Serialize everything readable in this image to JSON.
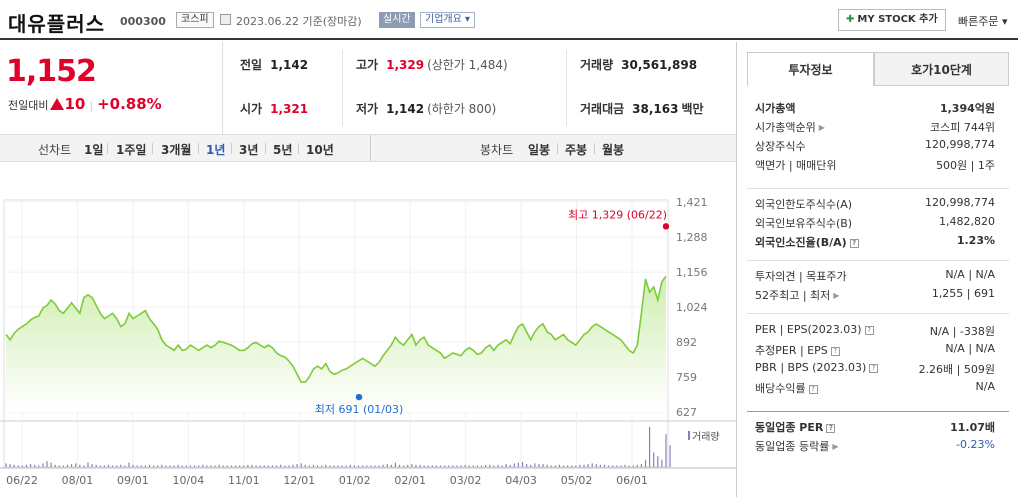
{
  "header": {
    "stock_name": "대유플러스",
    "stock_code": "000300",
    "market": "코스피",
    "date_basis": "2023.06.22 기준(장마감)",
    "realtime_label": "실시간",
    "company_overview_label": "기업개요 ▾",
    "my_stock_label": "MY STOCK 추가",
    "quick_order_label": "빠른주문 ▾"
  },
  "price": {
    "current": "1,152",
    "change_label": "전일대비",
    "change_value": "10",
    "change_pct": "+0.88%"
  },
  "stats": {
    "prev_close_label": "전일",
    "prev_close": "1,142",
    "open_label": "시가",
    "open": "1,321",
    "high_label": "고가",
    "high": "1,329",
    "upper_limit": "(상한가 1,484)",
    "low_label": "저가",
    "low": "1,142",
    "lower_limit": "(하한가 800)",
    "volume_label": "거래량",
    "volume": "30,561,898",
    "amount_label": "거래대금",
    "amount": "38,163",
    "amount_unit": "백만"
  },
  "period_tabs": {
    "line_chart_label": "선차트",
    "items": [
      "1일",
      "1주일",
      "3개월",
      "1년",
      "3년",
      "5년",
      "10년"
    ],
    "selected": "1년",
    "candle_label": "봉차트",
    "candles": [
      "일봉",
      "주봉",
      "월봉"
    ]
  },
  "chart_data": {
    "type": "area",
    "title": "",
    "y_ticks": [
      "1,421",
      "1,288",
      "1,156",
      "1,024",
      "892",
      "759",
      "627"
    ],
    "ylim": [
      627,
      1421
    ],
    "x_ticks": [
      "06/22",
      "08/01",
      "09/01",
      "10/04",
      "11/01",
      "12/01",
      "01/02",
      "02/01",
      "03/02",
      "04/03",
      "05/02",
      "06/01"
    ],
    "high_annotation": "최고 1,329 (06/22)",
    "low_annotation": "최저 691 (01/03)",
    "volume_label": "거래량",
    "series": [
      {
        "values": [
          920,
          900,
          925,
          940,
          950,
          960,
          975,
          985,
          990,
          1020,
          1030,
          1050,
          1035,
          1010,
          1000,
          1020,
          1040,
          1020,
          1000,
          1060,
          1070,
          1060,
          1030,
          1000,
          980,
          990,
          1000,
          980,
          950,
          960,
          1000,
          980,
          990,
          1000,
          1010,
          980,
          960,
          940,
          900,
          880,
          870,
          860,
          880,
          860,
          865,
          880,
          870,
          860,
          870,
          880,
          870,
          880,
          895,
          890,
          885,
          880,
          870,
          860,
          860,
          870,
          885,
          890,
          880,
          870,
          880,
          870,
          850,
          840,
          835,
          820,
          800,
          770,
          740,
          740,
          760,
          790,
          800,
          790,
          810,
          780,
          770,
          775,
          785,
          790,
          800,
          810,
          820,
          830,
          820,
          810,
          800,
          815,
          840,
          860,
          880,
          910,
          890,
          880,
          900,
          920,
          880,
          900,
          910,
          880,
          870,
          860,
          850,
          830,
          840,
          850,
          845,
          840,
          860,
          870,
          860,
          845,
          850,
          870,
          880,
          860,
          880,
          890,
          900,
          885,
          920,
          950,
          960,
          930,
          900,
          930,
          950,
          960,
          930,
          920,
          900,
          910,
          920,
          900,
          890,
          880,
          900,
          920,
          930,
          950,
          960,
          950,
          940,
          930,
          920,
          910,
          900,
          880,
          860,
          850,
          880,
          1000,
          1130,
          1080,
          1100,
          1050,
          1120,
          1140
        ]
      }
    ],
    "volume": [
      5,
      4,
      3,
      2,
      2,
      3,
      4,
      3,
      2,
      5,
      8,
      6,
      3,
      2,
      2,
      3,
      4,
      5,
      3,
      2,
      6,
      4,
      3,
      2,
      2,
      3,
      2,
      2,
      3,
      2,
      6,
      3,
      2,
      2,
      2,
      3,
      2,
      2,
      3,
      2,
      2,
      2,
      3,
      2,
      2,
      2,
      2,
      2,
      3,
      2,
      2,
      2,
      3,
      2,
      2,
      2,
      2,
      2,
      2,
      3,
      3,
      2,
      2,
      2,
      2,
      2,
      2,
      3,
      2,
      2,
      3,
      4,
      5,
      3,
      2,
      3,
      2,
      2,
      3,
      2,
      2,
      2,
      2,
      2,
      3,
      2,
      2,
      2,
      2,
      2,
      2,
      2,
      3,
      4,
      3,
      6,
      3,
      2,
      3,
      4,
      3,
      3,
      2,
      2,
      2,
      2,
      2,
      2,
      2,
      2,
      2,
      2,
      3,
      2,
      2,
      2,
      2,
      3,
      3,
      2,
      3,
      2,
      4,
      3,
      5,
      6,
      7,
      4,
      3,
      5,
      4,
      4,
      3,
      2,
      2,
      3,
      2,
      2,
      2,
      2,
      3,
      3,
      4,
      5,
      4,
      3,
      3,
      2,
      2,
      2,
      2,
      3,
      2,
      2,
      3,
      4,
      10,
      55,
      20,
      15,
      10,
      45,
      30
    ]
  },
  "side": {
    "tab_invest": "투자정보",
    "tab_quote": "호가10단계",
    "rows1": [
      {
        "k": "시가총액",
        "v": "1,394억원"
      },
      {
        "k": "시가총액순위",
        "v": "코스피 744위"
      },
      {
        "k": "상장주식수",
        "v": "120,998,774"
      },
      {
        "k": "액면가 | 매매단위",
        "v": "500원 | 1주"
      }
    ],
    "rows2": [
      {
        "k": "외국인한도주식수(A)",
        "v": "120,998,774"
      },
      {
        "k": "외국인보유주식수(B)",
        "v": "1,482,820"
      },
      {
        "k": "외국인소진율(B/A)",
        "v": "1.23%"
      }
    ],
    "rows3": [
      {
        "k": "투자의견 | 목표주가",
        "v": "N/A | N/A"
      },
      {
        "k": "52주최고 | 최저",
        "v": "1,255 | 691"
      }
    ],
    "rows4": [
      {
        "k": "PER | EPS(2023.03)",
        "v": "N/A | -338원"
      },
      {
        "k": "추정PER | EPS",
        "v": "N/A | N/A"
      },
      {
        "k": "PBR | BPS (2023.03)",
        "v": "2.26배 | 509원"
      },
      {
        "k": "배당수익률",
        "v": "N/A"
      }
    ],
    "rows5": [
      {
        "k": "동일업종 PER",
        "v": "11.07배"
      },
      {
        "k": "동일업종 등락률",
        "v": "-0.23%"
      }
    ]
  },
  "colors": {
    "up_red": "#e0002a",
    "line_green": "#7ecb3a",
    "area_fill": "#e6f5d3",
    "link_blue": "#2a5db0"
  }
}
